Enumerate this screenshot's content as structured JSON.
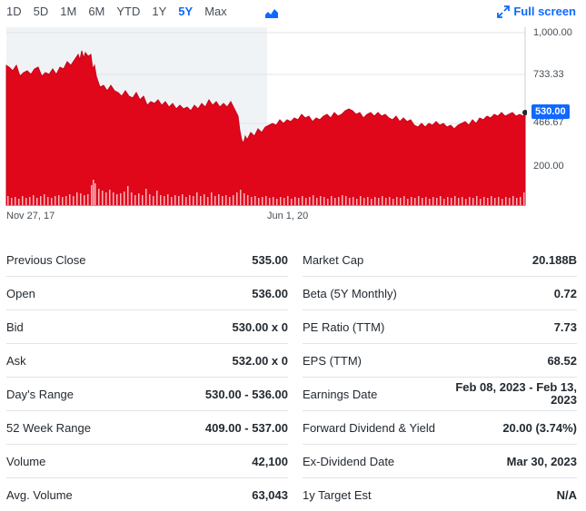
{
  "ranges": [
    "1D",
    "5D",
    "1M",
    "6M",
    "YTD",
    "1Y",
    "5Y",
    "Max"
  ],
  "active_range": "5Y",
  "fullscreen_label": "Full screen",
  "chart": {
    "y_ticks": [
      "1,000.00",
      "733.33",
      "466.67",
      "200.00"
    ],
    "x_ticks": [
      "Nov 27, 17",
      "Jun 1, 20"
    ],
    "current_price": "530.00",
    "series_color": "#e0071b",
    "badge_color": "#0f69ff"
  },
  "left_stats": [
    {
      "label": "Previous Close",
      "value": "535.00"
    },
    {
      "label": "Open",
      "value": "536.00"
    },
    {
      "label": "Bid",
      "value": "530.00 x 0"
    },
    {
      "label": "Ask",
      "value": "532.00 x 0"
    },
    {
      "label": "Day's Range",
      "value": "530.00 - 536.00"
    },
    {
      "label": "52 Week Range",
      "value": "409.00 - 537.00"
    },
    {
      "label": "Volume",
      "value": "42,100"
    },
    {
      "label": "Avg. Volume",
      "value": "63,043"
    }
  ],
  "right_stats": [
    {
      "label": "Market Cap",
      "value": "20.188B"
    },
    {
      "label": "Beta (5Y Monthly)",
      "value": "0.72"
    },
    {
      "label": "PE Ratio (TTM)",
      "value": "7.73"
    },
    {
      "label": "EPS (TTM)",
      "value": "68.52"
    },
    {
      "label": "Earnings Date",
      "value": "Feb 08, 2023 - Feb 13, 2023"
    },
    {
      "label": "Forward Dividend & Yield",
      "value": "20.00 (3.74%)"
    },
    {
      "label": "Ex-Dividend Date",
      "value": "Mar 30, 2023"
    },
    {
      "label": "1y Target Est",
      "value": "N/A"
    }
  ]
}
